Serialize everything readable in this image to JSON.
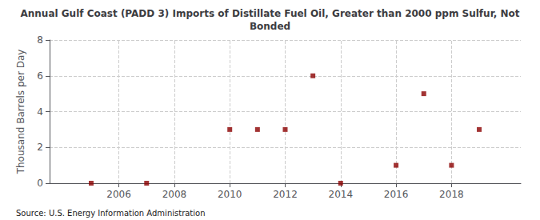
{
  "chart_data": {
    "type": "scatter",
    "title": "Annual Gulf Coast (PADD 3) Imports of Distillate Fuel Oil, Greater than 2000 ppm Sulfur, Not\nBonded",
    "ylabel": "Thousand Barrels per Day",
    "annotations": [
      "Source: U.S. Energy Information Administration"
    ],
    "x": [
      2005,
      2007,
      2010,
      2011,
      2012,
      2013,
      2014,
      2016,
      2017,
      2018,
      2019
    ],
    "values": [
      0,
      0,
      3,
      3,
      3,
      6,
      0,
      1,
      5,
      1,
      3
    ],
    "color": "#8b0000",
    "marker": "square",
    "xlim": [
      2003.5,
      2020.5
    ],
    "xticks": [
      2006,
      2008,
      2010,
      2012,
      2014,
      2016,
      2018
    ],
    "ylim": [
      0,
      8
    ],
    "yticks": [
      0,
      2,
      4,
      6,
      8
    ],
    "grid": true
  }
}
